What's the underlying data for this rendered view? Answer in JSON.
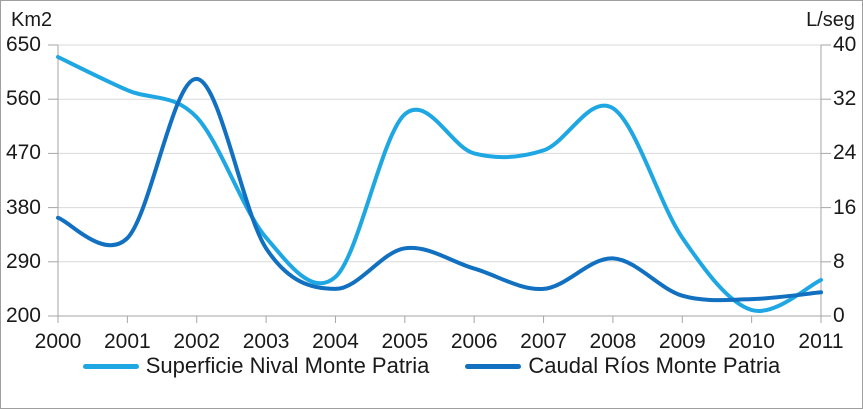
{
  "frame": {
    "background": "#ffffff",
    "border_color": "#9f9f9f"
  },
  "colors": {
    "gridline": "#d9d9d9",
    "axis_line": "#a6a6a6",
    "text": "#1a1a1a"
  },
  "chart_data": {
    "type": "line",
    "smooth": true,
    "grid": true,
    "legend_position": "bottom",
    "x": [
      2000,
      2001,
      2002,
      2003,
      2004,
      2005,
      2006,
      2007,
      2008,
      2009,
      2010,
      2011
    ],
    "left_axis": {
      "title": "Km2",
      "min": 200,
      "max": 650,
      "ticks": [
        650,
        560,
        470,
        380,
        290,
        200
      ]
    },
    "right_axis": {
      "title": "L/seg",
      "min": 0,
      "max": 40,
      "ticks": [
        40,
        32,
        24,
        16,
        8,
        0
      ]
    },
    "series": [
      {
        "name": "Superficie Nival Monte Patria",
        "y_axis": "left",
        "color": "#1ea7e3",
        "values": [
          630,
          575,
          530,
          330,
          265,
          535,
          470,
          475,
          545,
          330,
          210,
          260
        ]
      },
      {
        "name": "Caudal Ríos Monte Patria",
        "y_axis": "right",
        "color": "#1170c0",
        "values": [
          14.5,
          11.5,
          35,
          10,
          4,
          10,
          7,
          4,
          8.5,
          3,
          2.5,
          3.5
        ]
      }
    ]
  }
}
